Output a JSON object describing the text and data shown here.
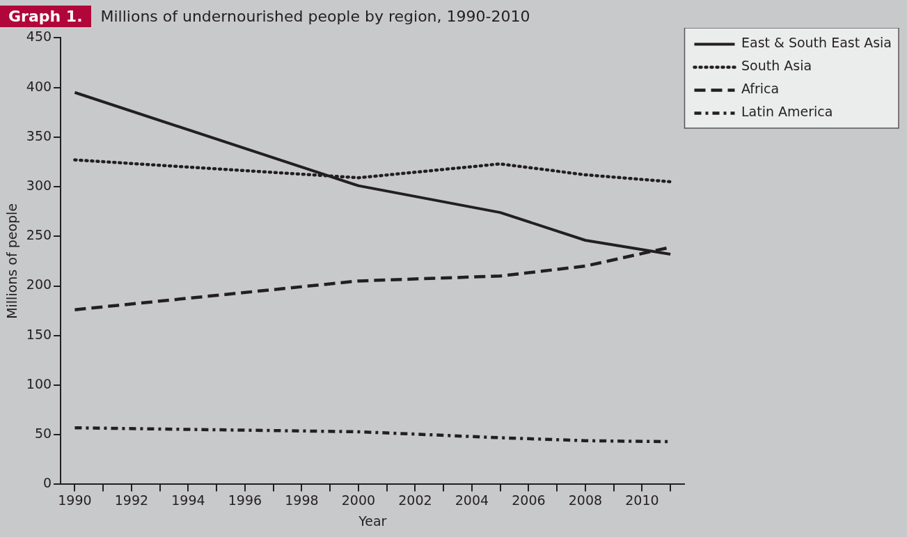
{
  "chart_data": {
    "type": "line",
    "title": "Millions of undernourished people by region, 1990-2010",
    "annotations": [
      "Graph 1."
    ],
    "xlabel": "Year",
    "ylabel": "Millions of people",
    "x": [
      1990,
      2000,
      2005,
      2008,
      2011
    ],
    "series": [
      {
        "name": "East & South East Asia",
        "color": "#231f20",
        "line_style": "solid",
        "values": [
          395,
          301,
          274,
          246,
          232
        ]
      },
      {
        "name": "South Asia",
        "color": "#231f20",
        "line_style": "dotted",
        "values": [
          327,
          309,
          323,
          312,
          305
        ]
      },
      {
        "name": "Africa",
        "color": "#231f20",
        "line_style": "dashed",
        "values": [
          176,
          205,
          210,
          220,
          239
        ]
      },
      {
        "name": "Latin America",
        "color": "#231f20",
        "line_style": "dashdot",
        "values": [
          57,
          53,
          47,
          44,
          43
        ]
      }
    ],
    "xlim": [
      1989.5,
      2011.5
    ],
    "xticks": [
      1990,
      {
        "value": 1991,
        "label": null
      },
      1992,
      {
        "value": 1993,
        "label": null
      },
      1994,
      {
        "value": 1995,
        "label": null
      },
      1996,
      {
        "value": 1997,
        "label": null
      },
      1998,
      {
        "value": 1999,
        "label": null
      },
      2000,
      {
        "value": 2001,
        "label": null
      },
      2002,
      {
        "value": 2003,
        "label": null
      },
      2004,
      {
        "value": 2005,
        "label": null
      },
      2006,
      {
        "value": 2007,
        "label": null
      },
      2008,
      {
        "value": 2009,
        "label": null
      },
      2010,
      {
        "value": 2011,
        "label": null
      }
    ],
    "ylim": [
      0,
      450
    ],
    "yticks": [
      0,
      50,
      100,
      150,
      200,
      250,
      300,
      350,
      400,
      450
    ],
    "grid": false,
    "legend": "top right",
    "marker": "none"
  }
}
